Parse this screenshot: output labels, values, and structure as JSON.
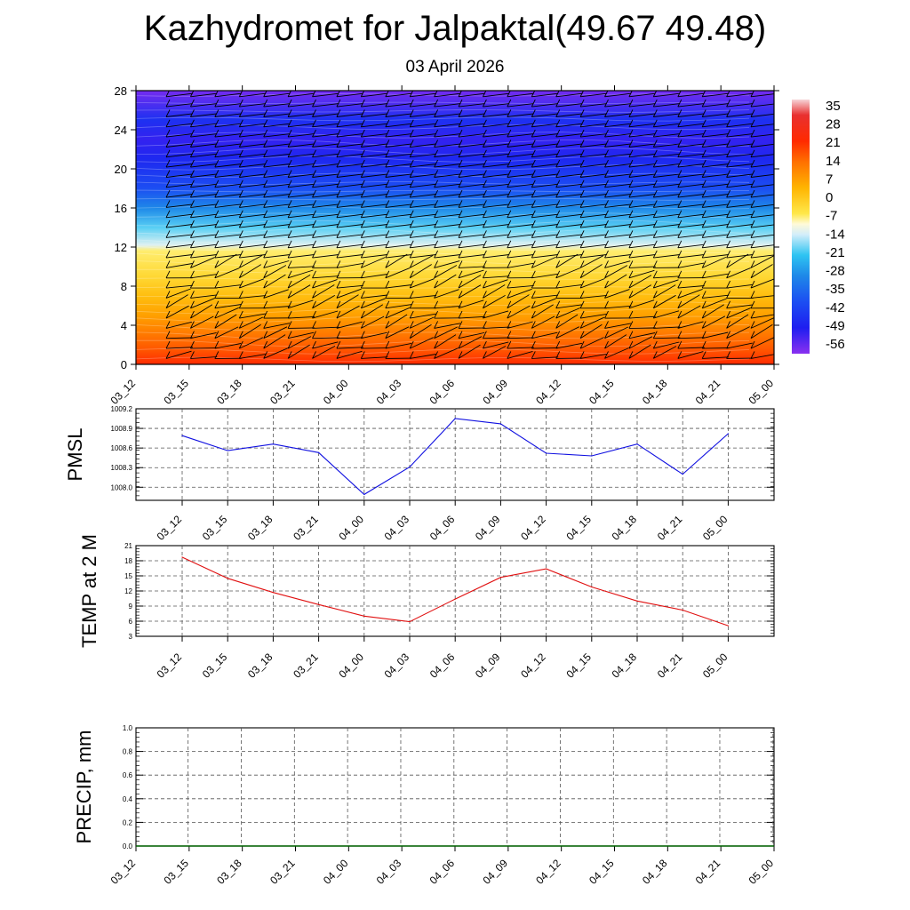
{
  "title": "Kazhydromet for Jalpaktal(49.67 49.48)",
  "subtitle": "03 April 2026",
  "colors": {
    "pmsl_line": "#1010e0",
    "temp_line": "#e01010",
    "precip_line": "#006400",
    "grid": "#555555"
  },
  "chart_data": [
    {
      "type": "heatmap",
      "title": "",
      "x": [
        "03_12",
        "03_15",
        "03_18",
        "03_21",
        "04_00",
        "04_03",
        "04_06",
        "04_09",
        "04_12",
        "04_15",
        "04_18",
        "04_21",
        "05_00"
      ],
      "y_ticks": [
        0,
        4,
        8,
        12,
        16,
        20,
        24,
        28
      ],
      "ylim": [
        0,
        28
      ],
      "colorbar": {
        "labels": [
          "35",
          "28",
          "21",
          "14",
          "7",
          "0",
          "-7",
          "-14",
          "-21",
          "-28",
          "-35",
          "-42",
          "-49",
          "-56"
        ],
        "stops": [
          {
            "v": 38,
            "c": "#f6d4d8"
          },
          {
            "v": 32,
            "c": "#e83030"
          },
          {
            "v": 22,
            "c": "#ff2a00"
          },
          {
            "v": 14,
            "c": "#ff7000"
          },
          {
            "v": 4,
            "c": "#ffb400"
          },
          {
            "v": -6,
            "c": "#ffe84a"
          },
          {
            "v": -10,
            "c": "#fffad8"
          },
          {
            "v": -14,
            "c": "#d4eefa"
          },
          {
            "v": -22,
            "c": "#2ec4f2"
          },
          {
            "v": -30,
            "c": "#1e88e8"
          },
          {
            "v": -40,
            "c": "#1c4ef2"
          },
          {
            "v": -50,
            "c": "#1e1ef0"
          },
          {
            "v": -60,
            "c": "#8a30f0"
          }
        ]
      },
      "profile": [
        {
          "h": 0,
          "t": 22
        },
        {
          "h": 1.5,
          "t": 17
        },
        {
          "h": 3,
          "t": 13
        },
        {
          "h": 5,
          "t": 7
        },
        {
          "h": 7,
          "t": 2
        },
        {
          "h": 9,
          "t": -3
        },
        {
          "h": 11.6,
          "t": -7
        },
        {
          "h": 12.2,
          "t": -13
        },
        {
          "h": 14,
          "t": -20
        },
        {
          "h": 16,
          "t": -30
        },
        {
          "h": 18,
          "t": -40
        },
        {
          "h": 21,
          "t": -48
        },
        {
          "h": 23,
          "t": -52
        },
        {
          "h": 25,
          "t": -46
        },
        {
          "h": 28,
          "t": -58
        }
      ]
    },
    {
      "type": "line",
      "ylabel": "PMSL",
      "x": [
        "03_12",
        "03_15",
        "03_18",
        "03_21",
        "04_00",
        "04_03",
        "04_06",
        "04_09",
        "04_12",
        "04_15",
        "04_18",
        "04_21",
        "05_00"
      ],
      "y_ticks": [
        "1008.0",
        "1008.3",
        "1008.6",
        "1008.9",
        "1009.2"
      ],
      "ylim": [
        1007.8,
        1009.2
      ],
      "series": [
        {
          "values": [
            1008.79,
            1008.56,
            1008.66,
            1008.53,
            1007.89,
            1008.31,
            1009.05,
            1008.97,
            1008.52,
            1008.48,
            1008.66,
            1008.2,
            1008.82
          ]
        }
      ]
    },
    {
      "type": "line",
      "ylabel": "TEMP at 2 M",
      "x": [
        "03_12",
        "03_15",
        "03_18",
        "03_21",
        "04_00",
        "04_03",
        "04_06",
        "04_09",
        "04_12",
        "04_15",
        "04_18",
        "04_21",
        "05_00"
      ],
      "y_ticks": [
        "3",
        "6",
        "9",
        "12",
        "15",
        "18",
        "21"
      ],
      "ylim": [
        3,
        21
      ],
      "series": [
        {
          "values": [
            18.7,
            14.5,
            11.7,
            9.3,
            7.0,
            5.9,
            10.4,
            14.7,
            16.4,
            12.8,
            10.0,
            8.2,
            5.1
          ]
        }
      ]
    },
    {
      "type": "line",
      "ylabel": "PRECIP, mm",
      "x": [
        "03_12",
        "03_15",
        "03_18",
        "03_21",
        "04_00",
        "04_03",
        "04_06",
        "04_09",
        "04_12",
        "04_15",
        "04_18",
        "04_21",
        "05_00"
      ],
      "y_ticks": [
        "0.0",
        "0.2",
        "0.4",
        "0.6",
        "0.8",
        "1.0"
      ],
      "ylim": [
        0,
        1
      ],
      "series": [
        {
          "values": [
            0,
            0,
            0,
            0,
            0,
            0,
            0,
            0,
            0,
            0,
            0,
            0,
            0
          ]
        }
      ]
    }
  ]
}
